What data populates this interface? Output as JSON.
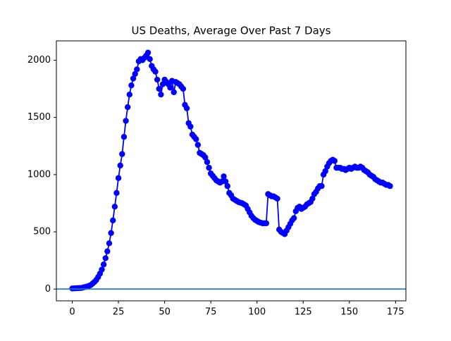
{
  "chart_data": {
    "type": "line",
    "title": "US Deaths, Average Over Past 7 Days",
    "x": [
      0,
      1,
      2,
      3,
      4,
      5,
      6,
      7,
      8,
      9,
      10,
      11,
      12,
      13,
      14,
      15,
      16,
      17,
      18,
      19,
      20,
      21,
      22,
      23,
      24,
      25,
      26,
      27,
      28,
      29,
      30,
      31,
      32,
      33,
      34,
      35,
      36,
      37,
      38,
      39,
      40,
      41,
      42,
      43,
      44,
      45,
      46,
      47,
      48,
      49,
      50,
      51,
      52,
      53,
      54,
      55,
      56,
      57,
      58,
      59,
      60,
      61,
      62,
      63,
      64,
      65,
      66,
      67,
      68,
      69,
      70,
      71,
      72,
      73,
      74,
      75,
      76,
      77,
      78,
      79,
      80,
      81,
      82,
      83,
      84,
      85,
      86,
      87,
      88,
      89,
      90,
      91,
      92,
      93,
      94,
      95,
      96,
      97,
      98,
      99,
      100,
      101,
      102,
      103,
      104,
      105,
      106,
      107,
      108,
      109,
      110,
      111,
      112,
      113,
      114,
      115,
      116,
      117,
      118,
      119,
      120,
      121,
      122,
      123,
      124,
      125,
      126,
      127,
      128,
      129,
      130,
      131,
      132,
      133,
      134,
      135,
      136,
      137,
      138,
      139,
      140,
      141,
      142,
      143,
      144,
      145,
      146,
      147,
      148,
      149,
      150,
      151,
      152,
      153,
      154,
      155,
      156,
      157,
      158,
      159,
      160,
      161,
      162,
      163,
      164,
      165,
      166,
      167,
      168,
      169,
      170,
      171,
      172
    ],
    "series": [
      {
        "color": "#0000ff",
        "values": [
          5,
          6,
          7,
          8,
          9,
          10,
          14,
          18,
          22,
          28,
          35,
          48,
          62,
          80,
          105,
          135,
          170,
          215,
          270,
          330,
          400,
          490,
          600,
          720,
          840,
          970,
          1080,
          1180,
          1330,
          1470,
          1590,
          1700,
          1780,
          1840,
          1880,
          1920,
          1990,
          2010,
          2000,
          2020,
          2040,
          2066,
          2010,
          1950,
          1920,
          1900,
          1830,
          1750,
          1700,
          1790,
          1830,
          1810,
          1790,
          1760,
          1820,
          1720,
          1810,
          1800,
          1790,
          1770,
          1750,
          1610,
          1580,
          1450,
          1420,
          1350,
          1330,
          1310,
          1260,
          1190,
          1180,
          1170,
          1150,
          1110,
          1060,
          1010,
          990,
          970,
          950,
          940,
          930,
          940,
          985,
          940,
          900,
          840,
          820,
          790,
          780,
          770,
          760,
          755,
          750,
          740,
          730,
          700,
          670,
          640,
          620,
          605,
          595,
          585,
          580,
          575,
          575,
          575,
          830,
          820,
          810,
          810,
          800,
          790,
          520,
          500,
          490,
          480,
          510,
          540,
          570,
          600,
          620,
          680,
          710,
          720,
          700,
          710,
          720,
          740,
          750,
          760,
          790,
          830,
          850,
          880,
          900,
          900,
          1000,
          1030,
          1070,
          1100,
          1120,
          1130,
          1120,
          1060,
          1060,
          1060,
          1050,
          1050,
          1040,
          1050,
          1060,
          1050,
          1060,
          1070,
          1060,
          1060,
          1070,
          1060,
          1040,
          1030,
          1020,
          1000,
          990,
          980,
          960,
          950,
          940,
          930,
          930,
          920,
          910,
          910,
          900
        ]
      }
    ],
    "axhline": {
      "value": 0,
      "color": "#1f77b4"
    },
    "xlim": [
      -8.6,
      180.6
    ],
    "ylim": [
      -103,
      2169
    ],
    "xticks": [
      0,
      25,
      50,
      75,
      100,
      125,
      150,
      175
    ],
    "yticks": [
      0,
      500,
      1000,
      1500,
      2000
    ]
  }
}
